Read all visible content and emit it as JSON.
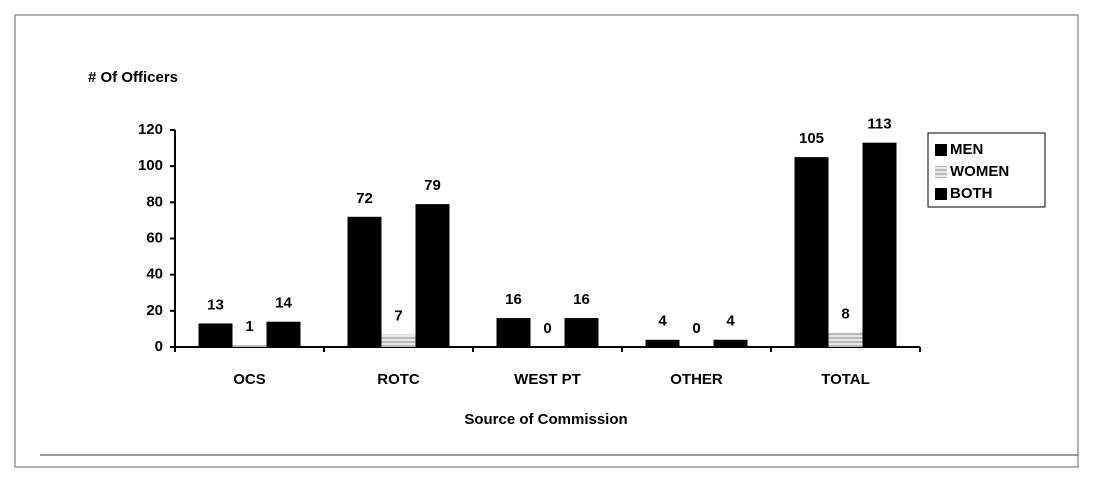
{
  "chart_data": {
    "type": "bar",
    "ylabel": "# Of Officers",
    "xlabel": "Source of Commission",
    "categories": [
      "OCS",
      "ROTC",
      "WEST PT",
      "OTHER",
      "TOTAL"
    ],
    "series": [
      {
        "name": "MEN",
        "color": "#000000",
        "values": [
          13,
          72,
          16,
          4,
          105
        ]
      },
      {
        "name": "WOMEN",
        "color": "#d0d0d0",
        "values": [
          1,
          7,
          0,
          0,
          8
        ]
      },
      {
        "name": "BOTH",
        "color": "#000000",
        "values": [
          14,
          79,
          16,
          4,
          113
        ]
      }
    ],
    "ylim": [
      0,
      120
    ],
    "yticks": [
      0,
      20,
      40,
      60,
      80,
      100,
      120
    ],
    "legend": "right"
  }
}
